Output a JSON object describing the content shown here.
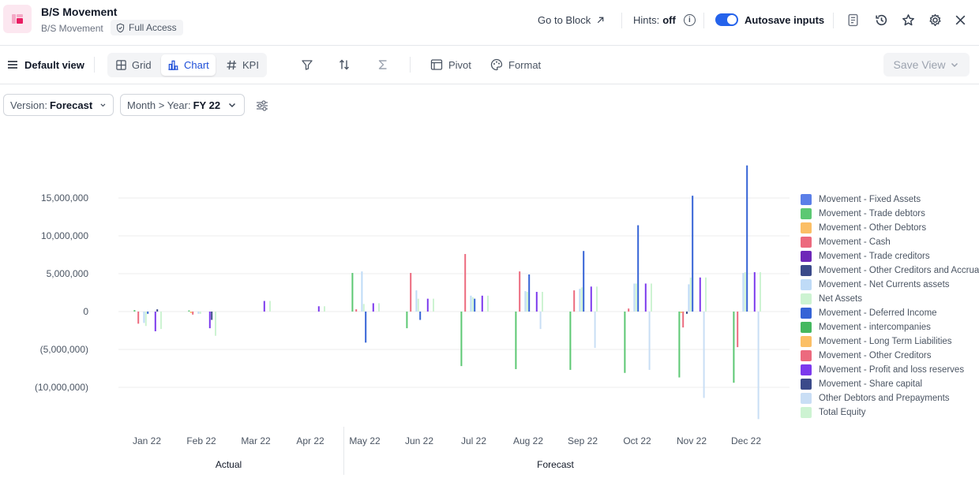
{
  "header": {
    "title": "B/S Movement",
    "subtitle": "B/S Movement",
    "access_label": "Full Access",
    "goto_label": "Go to Block",
    "hints_label": "Hints:",
    "hints_value": "off",
    "autosave_label": "Autosave inputs",
    "autosave_on": true,
    "info_glyph": "i"
  },
  "toolbar": {
    "view_label": "Default view",
    "tabs": [
      {
        "label": "Grid",
        "icon": "grid-icon"
      },
      {
        "label": "Chart",
        "icon": "bar-chart-icon",
        "active": true
      },
      {
        "label": "KPI",
        "icon": "hash-icon"
      }
    ],
    "pivot_label": "Pivot",
    "format_label": "Format",
    "save_view_label": "Save View"
  },
  "filters": {
    "version_label": "Version:",
    "version_value": "Forecast",
    "period_label": "Month > Year:",
    "period_value": "FY 22"
  },
  "colors": {
    "accent": "#2563eb",
    "active_tab": "#1d4ed8"
  },
  "chart_data": {
    "type": "bar",
    "categories": [
      "Jan 22",
      "Feb 22",
      "Mar 22",
      "Apr 22",
      "May 22",
      "Jun 22",
      "Jul 22",
      "Aug 22",
      "Sep 22",
      "Oct 22",
      "Nov 22",
      "Dec 22"
    ],
    "groups": [
      {
        "label": "Actual",
        "categories": [
          "Jan 22",
          "Feb 22",
          "Mar 22",
          "Apr 22"
        ]
      },
      {
        "label": "Forecast",
        "categories": [
          "May 22",
          "Jun 22",
          "Jul 22",
          "Aug 22",
          "Sep 22",
          "Oct 22",
          "Nov 22",
          "Dec 22"
        ]
      }
    ],
    "y_ticks": [
      {
        "value": 15000000,
        "label": "15,000,000"
      },
      {
        "value": 10000000,
        "label": "10,000,000"
      },
      {
        "value": 5000000,
        "label": "5,000,000"
      },
      {
        "value": 0,
        "label": "0"
      },
      {
        "value": -5000000,
        "label": "(5,000,000)"
      },
      {
        "value": -10000000,
        "label": "(10,000,000)"
      }
    ],
    "ylim": [
      -14500000,
      19500000
    ],
    "grid": true,
    "legend_position": "right",
    "series": [
      {
        "name": "Movement - Fixed Assets",
        "color": "#5b7fe8",
        "values": [
          0,
          0,
          0,
          0,
          0,
          0,
          0,
          0,
          0,
          0,
          0,
          0
        ]
      },
      {
        "name": "Movement - Trade debtors",
        "color": "#5cc873",
        "values": [
          200000,
          150000,
          0,
          0,
          5100000,
          -2200000,
          -7200000,
          -7600000,
          -7700000,
          -8100000,
          -8700000,
          -9400000
        ]
      },
      {
        "name": "Movement - Other Debtors",
        "color": "#fbbf66",
        "values": [
          0,
          -200000,
          0,
          0,
          0,
          0,
          0,
          0,
          0,
          0,
          -200000,
          0
        ]
      },
      {
        "name": "Movement - Cash",
        "color": "#ec6a7e",
        "values": [
          -1600000,
          -400000,
          0,
          0,
          300000,
          5100000,
          7600000,
          5300000,
          2800000,
          400000,
          -2100000,
          -4700000
        ]
      },
      {
        "name": "Movement - Trade creditors",
        "color": "#6d28b8",
        "values": [
          0,
          0,
          0,
          0,
          0,
          0,
          0,
          0,
          0,
          0,
          0,
          0
        ]
      },
      {
        "name": "Movement - Other Creditors and Accruals",
        "color": "#3b4a8a",
        "values": [
          0,
          0,
          0,
          0,
          0,
          0,
          0,
          0,
          0,
          0,
          -300000,
          0
        ]
      },
      {
        "name": "Movement - Net Currents assets",
        "color": "#bfdbf7",
        "values": [
          -1500000,
          -300000,
          0,
          0,
          5300000,
          2800000,
          2100000,
          2700000,
          3000000,
          3700000,
          3600000,
          5100000
        ]
      },
      {
        "name": "Net Assets",
        "color": "#cdf3d2",
        "values": [
          -1900000,
          -300000,
          0,
          0,
          1000000,
          1700000,
          1900000,
          2600000,
          3200000,
          3700000,
          4500000,
          5200000
        ]
      },
      {
        "name": "Movement - Deferred Income",
        "color": "#3563d6",
        "values": [
          -300000,
          0,
          0,
          0,
          -4100000,
          -1100000,
          1700000,
          4900000,
          8000000,
          11400000,
          15300000,
          19300000
        ]
      },
      {
        "name": "Movement - intercompanies",
        "color": "#45b85f",
        "values": [
          0,
          0,
          0,
          0,
          0,
          0,
          0,
          0,
          0,
          0,
          0,
          0
        ]
      },
      {
        "name": "Movement - Long Term Liabilities",
        "color": "#fbbf66",
        "values": [
          0,
          0,
          0,
          0,
          0,
          0,
          0,
          0,
          0,
          0,
          0,
          0
        ]
      },
      {
        "name": "Movement - Other Creditors",
        "color": "#ec6a7e",
        "values": [
          0,
          0,
          0,
          0,
          0,
          0,
          0,
          0,
          0,
          0,
          0,
          0
        ]
      },
      {
        "name": "Movement - Profit and loss reserves",
        "color": "#7c3aed",
        "values": [
          -2600000,
          -2200000,
          1400000,
          700000,
          1100000,
          1700000,
          2100000,
          2600000,
          3300000,
          3700000,
          4500000,
          5200000
        ]
      },
      {
        "name": "Movement - Share capital",
        "color": "#3b4a8a",
        "values": [
          300000,
          -1100000,
          0,
          0,
          0,
          0,
          0,
          0,
          0,
          0,
          0,
          0
        ]
      },
      {
        "name": "Other Debtors and Prepayments",
        "color": "#c9def5",
        "values": [
          0,
          0,
          0,
          0,
          0,
          0,
          0,
          -2300000,
          -4800000,
          -7700000,
          -11400000,
          -14200000
        ]
      },
      {
        "name": "Total Equity",
        "color": "#cdf3d2",
        "values": [
          -2300000,
          -3200000,
          1400000,
          700000,
          1100000,
          1700000,
          2100000,
          2600000,
          3300000,
          3700000,
          4500000,
          5200000
        ]
      }
    ]
  }
}
